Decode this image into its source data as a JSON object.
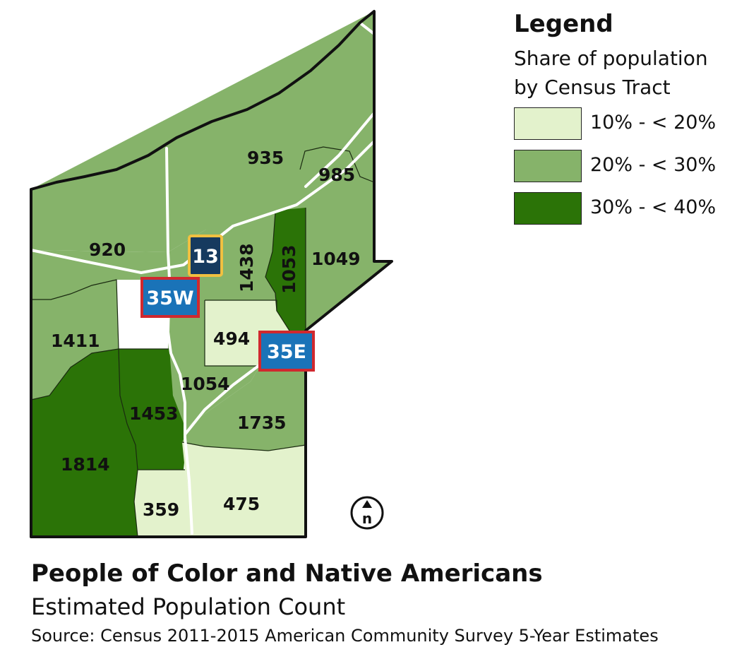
{
  "legend": {
    "title": "Legend",
    "subtitle": "Share of population by Census Tract",
    "classes": [
      {
        "label": "10% - < 20%",
        "color": "#e3f2cc"
      },
      {
        "label": "20% - < 30%",
        "color": "#86b36a"
      },
      {
        "label": "30% - < 40%",
        "color": "#2b7307"
      }
    ]
  },
  "tracts": [
    {
      "id": "t935",
      "count": "935",
      "class": 1
    },
    {
      "id": "t985",
      "count": "985",
      "class": 1
    },
    {
      "id": "t920",
      "count": "920",
      "class": 1
    },
    {
      "id": "t1438",
      "count": "1438",
      "class": 1
    },
    {
      "id": "t1053",
      "count": "1053",
      "class": 2
    },
    {
      "id": "t1049",
      "count": "1049",
      "class": 1
    },
    {
      "id": "t1411",
      "count": "1411",
      "class": 1
    },
    {
      "id": "t494",
      "count": "494",
      "class": 0
    },
    {
      "id": "t1054",
      "count": "1054",
      "class": 1
    },
    {
      "id": "t1453",
      "count": "1453",
      "class": 2
    },
    {
      "id": "t1735",
      "count": "1735",
      "class": 1
    },
    {
      "id": "t1814",
      "count": "1814",
      "class": 2
    },
    {
      "id": "t359",
      "count": "359",
      "class": 0
    },
    {
      "id": "t475",
      "count": "475",
      "class": 0
    }
  ],
  "highways": {
    "hwy13": {
      "label": "13",
      "bg": "#163a5f",
      "border": "#f0c040"
    },
    "i35w": {
      "label": "35W",
      "bg": "#1a73b8",
      "border": "#d0282e"
    },
    "i35e": {
      "label": "35E",
      "bg": "#1a73b8",
      "border": "#d0282e"
    }
  },
  "north_arrow": {
    "letter": "n"
  },
  "title": "People of Color and Native Americans",
  "subtitle": "Estimated Population Count",
  "source": "Source: Census 2011-2015 American Community Survey 5-Year Estimates"
}
